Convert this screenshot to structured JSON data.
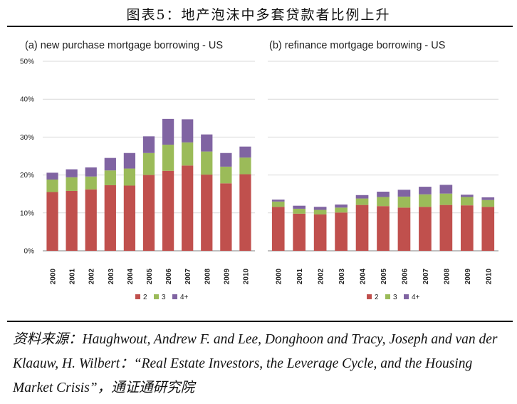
{
  "figure_title": "图表5：地产泡沫中多套贷款者比例上升",
  "source": {
    "prefix": "资料来源：",
    "text": "Haughwout, Andrew F. and Lee, Donghoon and Tracy, Joseph and van der Klaauw, H. Wilbert：“Real Estate Investors, the Leverage Cycle, and the Housing Market Crisis”，",
    "publisher": "通证通研究院"
  },
  "colors": {
    "s2": "#c0504d",
    "s3": "#9bbb59",
    "s4": "#8064a2",
    "grid": "#d9d9d9",
    "axis": "#808080"
  },
  "chart_data": [
    {
      "type": "bar",
      "stacked": true,
      "title": "(a) new purchase mortgage borrowing - US",
      "categories": [
        "2000",
        "2001",
        "2002",
        "2003",
        "2004",
        "2005",
        "2006",
        "2007",
        "2008",
        "2009",
        "2010"
      ],
      "series": [
        {
          "name": "2",
          "values": [
            15.5,
            15.8,
            16.2,
            17.3,
            17.2,
            20.0,
            21.1,
            22.5,
            20.1,
            17.8,
            20.2
          ]
        },
        {
          "name": "3",
          "values": [
            3.3,
            3.6,
            3.4,
            3.9,
            4.5,
            5.8,
            6.9,
            6.1,
            6.1,
            4.4,
            4.4
          ]
        },
        {
          "name": "4+",
          "values": [
            1.8,
            2.1,
            2.4,
            3.3,
            4.1,
            4.4,
            6.8,
            6.1,
            4.5,
            3.6,
            2.9
          ]
        }
      ],
      "yticks": [
        0,
        10,
        20,
        30,
        40,
        50
      ],
      "ytick_labels": [
        "0%",
        "10%",
        "20%",
        "30%",
        "40%",
        "50%"
      ],
      "ylim": [
        0,
        50
      ],
      "legend": [
        "2",
        "3",
        "4+"
      ],
      "legend_position": "bottom"
    },
    {
      "type": "bar",
      "stacked": true,
      "title": "(b) refinance mortgage borrowing - US",
      "categories": [
        "2000",
        "2001",
        "2002",
        "2003",
        "2004",
        "2005",
        "2006",
        "2007",
        "2008",
        "2009",
        "2010"
      ],
      "series": [
        {
          "name": "2",
          "values": [
            11.6,
            9.8,
            9.6,
            10.1,
            12.1,
            11.8,
            11.4,
            11.6,
            12.1,
            12.0,
            11.6
          ]
        },
        {
          "name": "3",
          "values": [
            1.4,
            1.3,
            1.2,
            1.3,
            1.7,
            2.4,
            2.9,
            3.3,
            3.0,
            2.2,
            1.8
          ]
        },
        {
          "name": "4+",
          "values": [
            0.5,
            0.8,
            0.8,
            0.8,
            0.9,
            1.4,
            1.8,
            2.0,
            2.3,
            0.6,
            0.7
          ]
        }
      ],
      "ylim": [
        0,
        50
      ],
      "legend": [
        "2",
        "3",
        "4+"
      ],
      "legend_position": "bottom"
    }
  ]
}
